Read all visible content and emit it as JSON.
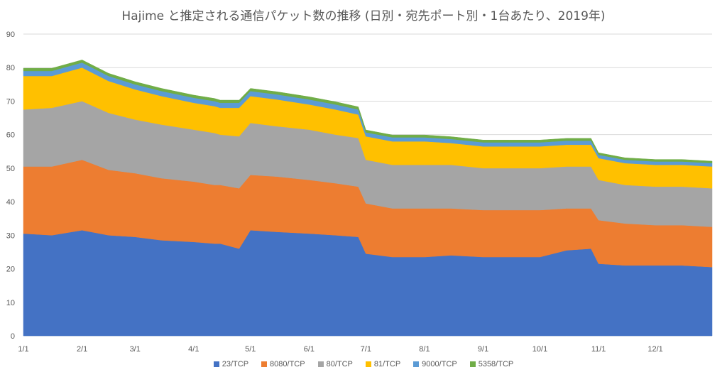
{
  "chart_data": {
    "type": "area",
    "stacked": true,
    "title": "Hajime と推定される通信パケット数の推移 (日別・宛先ポート別・1台あたり、2019年)",
    "xlabel": "",
    "ylabel": "",
    "ylim": [
      0,
      90
    ],
    "yticks": [
      0,
      10,
      20,
      30,
      40,
      50,
      60,
      70,
      80,
      90
    ],
    "xticks": [
      "1/1",
      "2/1",
      "3/1",
      "4/1",
      "5/1",
      "6/1",
      "7/1",
      "8/1",
      "9/1",
      "10/1",
      "11/1",
      "12/1"
    ],
    "x_dates": [
      "2019-01-01",
      "2019-01-16",
      "2019-02-01",
      "2019-02-15",
      "2019-03-01",
      "2019-03-15",
      "2019-04-01",
      "2019-04-12",
      "2019-04-15",
      "2019-04-25",
      "2019-05-01",
      "2019-05-15",
      "2019-06-01",
      "2019-06-15",
      "2019-06-27",
      "2019-07-01",
      "2019-07-15",
      "2019-08-01",
      "2019-08-15",
      "2019-09-01",
      "2019-09-15",
      "2019-10-01",
      "2019-10-15",
      "2019-10-28",
      "2019-11-01",
      "2019-11-15",
      "2019-12-01",
      "2019-12-15",
      "2019-12-31"
    ],
    "grid": true,
    "legend_position": "bottom",
    "series": [
      {
        "name": "23/TCP",
        "color": "#4472C4",
        "values": [
          30.5,
          30.0,
          31.5,
          30.0,
          29.5,
          28.5,
          28.0,
          27.5,
          27.5,
          26.0,
          31.5,
          31.0,
          30.5,
          30.0,
          29.5,
          24.5,
          23.5,
          23.5,
          24.0,
          23.5,
          23.5,
          23.5,
          25.5,
          26.0,
          21.5,
          21.0,
          21.0,
          21.0,
          20.5
        ]
      },
      {
        "name": "8080/TCP",
        "color": "#ED7D31",
        "values": [
          20.0,
          20.5,
          21.0,
          19.5,
          19.0,
          18.5,
          18.0,
          17.5,
          17.5,
          18.0,
          16.5,
          16.5,
          16.0,
          15.5,
          15.0,
          15.0,
          14.5,
          14.5,
          14.0,
          14.0,
          14.0,
          14.0,
          12.5,
          12.0,
          13.0,
          12.5,
          12.0,
          12.0,
          12.0
        ]
      },
      {
        "name": "80/TCP",
        "color": "#A5A5A5",
        "values": [
          17.0,
          17.5,
          17.5,
          17.0,
          16.0,
          16.0,
          15.5,
          15.5,
          15.0,
          15.5,
          15.5,
          15.0,
          15.0,
          14.5,
          14.5,
          13.0,
          13.0,
          13.0,
          13.0,
          12.5,
          12.5,
          12.5,
          12.5,
          12.5,
          12.0,
          11.5,
          11.5,
          11.5,
          11.5
        ]
      },
      {
        "name": "81/TCP",
        "color": "#FFC000",
        "values": [
          10.0,
          9.5,
          10.0,
          9.5,
          9.0,
          8.5,
          8.0,
          8.0,
          8.0,
          8.5,
          8.0,
          8.0,
          7.5,
          7.5,
          7.0,
          7.0,
          7.0,
          7.0,
          6.5,
          6.5,
          6.5,
          6.5,
          6.5,
          6.5,
          6.5,
          6.5,
          6.5,
          6.5,
          6.5
        ]
      },
      {
        "name": "9000/TCP",
        "color": "#5B9BD5",
        "values": [
          1.5,
          1.5,
          1.5,
          1.5,
          1.5,
          1.5,
          1.5,
          1.5,
          1.5,
          1.5,
          1.5,
          1.5,
          1.5,
          1.5,
          1.5,
          1.2,
          1.2,
          1.2,
          1.2,
          1.2,
          1.2,
          1.2,
          1.2,
          1.2,
          1.0,
          1.0,
          1.0,
          1.0,
          1.0
        ]
      },
      {
        "name": "5358/TCP",
        "color": "#70AD47",
        "values": [
          0.8,
          0.8,
          0.8,
          0.8,
          0.8,
          0.8,
          0.8,
          0.8,
          0.8,
          0.8,
          0.8,
          0.8,
          0.8,
          0.8,
          0.8,
          0.7,
          0.7,
          0.7,
          0.7,
          0.7,
          0.7,
          0.7,
          0.7,
          0.7,
          0.6,
          0.6,
          0.6,
          0.6,
          0.6
        ]
      }
    ]
  }
}
